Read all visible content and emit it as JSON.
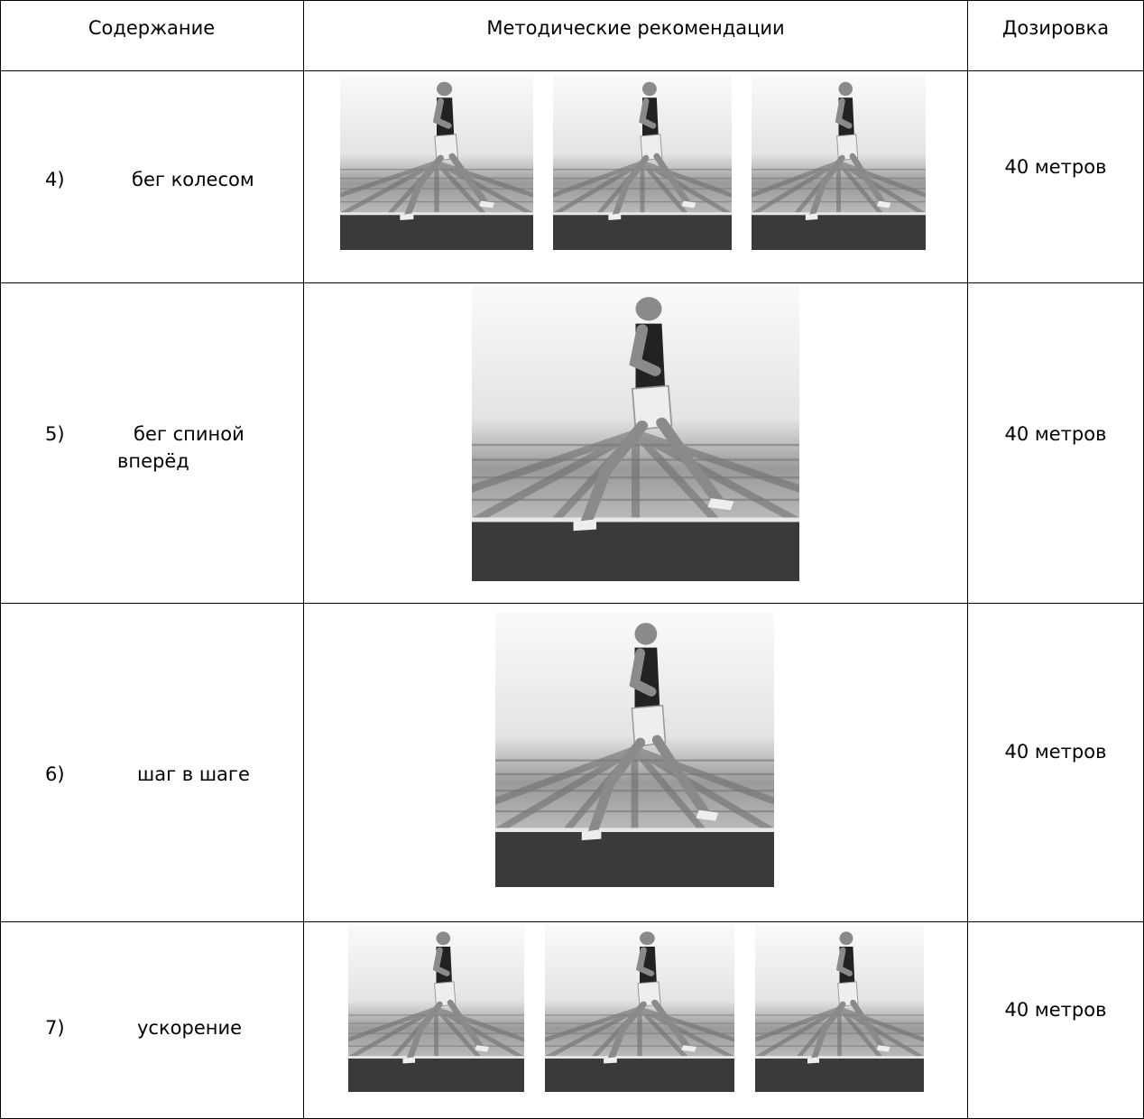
{
  "table": {
    "header": [
      "Содержание",
      "Методические рекомендации",
      "Дозировка"
    ],
    "rows": [
      {
        "number": "4)",
        "content": "бег колесом",
        "dosage": "40 метров"
      },
      {
        "number": "5)",
        "content": "бег спиной вперёд",
        "dosage": "40 метров"
      },
      {
        "number": "6)",
        "content": "шаг в шаге",
        "dosage": "40 метров"
      },
      {
        "number": "7)",
        "content": "ускорение",
        "dosage": "40 метров"
      }
    ]
  }
}
